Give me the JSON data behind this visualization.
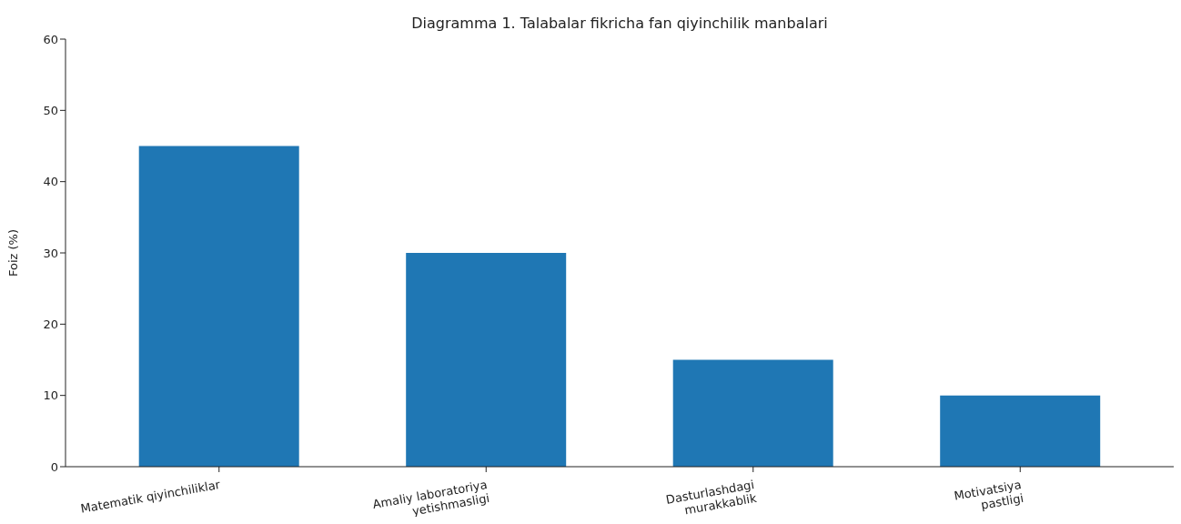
{
  "chart_data": {
    "type": "bar",
    "title": "Diagramma 1. Talabalar fikricha fan qiyinchilik manbalari",
    "ylabel": "Foiz (%)",
    "categories": [
      "Matematik qiyinchiliklar",
      "Amaliy laboratoriya\nyetishmasligi",
      "Dasturlashdagi\nmurakkablik",
      "Motivatsiya\npastligi"
    ],
    "values": [
      45,
      30,
      15,
      10
    ],
    "color": "#1f77b4",
    "ylim": [
      0,
      60
    ],
    "yticks": [
      0,
      10,
      20,
      30,
      40,
      50,
      60
    ],
    "grid": false
  }
}
